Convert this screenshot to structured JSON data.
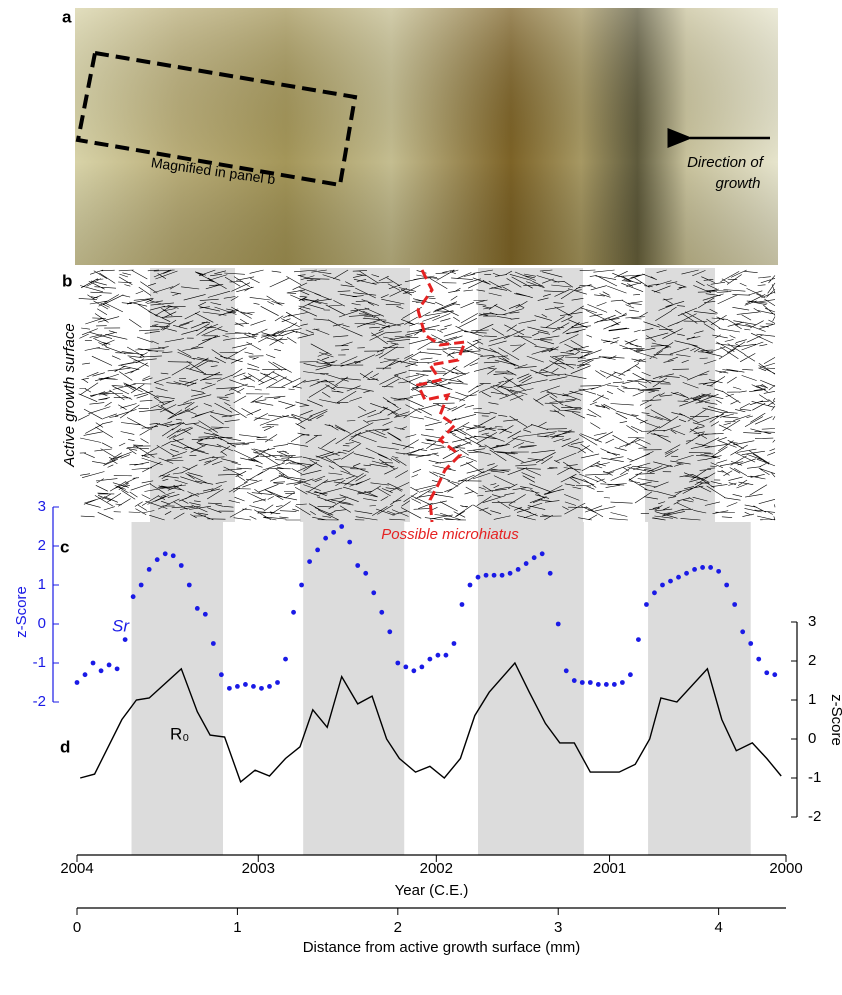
{
  "panels": {
    "a": {
      "label": "a",
      "box_label": "Magnified in panel b",
      "arrow_label": [
        "Direction of",
        "growth"
      ]
    },
    "b": {
      "label": "b",
      "side_label": "Active growth surface",
      "microhiatus_label": "Possible microhiatus"
    },
    "c_label": "c",
    "d_label": "d"
  },
  "chart_data": {
    "type": "line",
    "x_label": "Distance from active growth surface (mm)",
    "xlim": [
      0,
      4.42
    ],
    "xticks": [
      0,
      1,
      2,
      3,
      4
    ],
    "year_label": "Year (C.E.)",
    "year_ticks": [
      {
        "value": 0,
        "label": "2004"
      },
      {
        "value": 1.13,
        "label": "2003"
      },
      {
        "value": 2.24,
        "label": "2002"
      },
      {
        "value": 3.32,
        "label": "2001"
      },
      {
        "value": 4.42,
        "label": "2000"
      }
    ],
    "y_label": "z-Score",
    "ylim": [
      -2,
      3
    ],
    "yticks": [
      -2,
      -1,
      0,
      1,
      2,
      3
    ],
    "y2_label": "z-Score",
    "y2lim": [
      -2,
      3
    ],
    "y2ticks": [
      -2,
      -1,
      0,
      1,
      2,
      3
    ],
    "shaded_bands": [
      [
        0.34,
        0.91
      ],
      [
        1.41,
        2.04
      ],
      [
        2.5,
        3.16
      ],
      [
        3.56,
        4.2
      ]
    ],
    "series": [
      {
        "name": "Sr",
        "color": "#1a1ae6",
        "style": "dots",
        "axis": "y",
        "x": [
          0,
          0.05,
          0.1,
          0.15,
          0.2,
          0.25,
          0.3,
          0.35,
          0.4,
          0.45,
          0.5,
          0.55,
          0.6,
          0.65,
          0.7,
          0.75,
          0.8,
          0.85,
          0.9,
          0.95,
          1,
          1.05,
          1.1,
          1.15,
          1.2,
          1.25,
          1.3,
          1.35,
          1.4,
          1.45,
          1.5,
          1.55,
          1.6,
          1.65,
          1.7,
          1.75,
          1.8,
          1.85,
          1.9,
          1.95,
          2,
          2.05,
          2.1,
          2.15,
          2.2,
          2.25,
          2.3,
          2.35,
          2.4,
          2.45,
          2.5,
          2.55,
          2.6,
          2.65,
          2.7,
          2.75,
          2.8,
          2.85,
          2.9,
          2.95,
          3,
          3.05,
          3.1,
          3.15,
          3.2,
          3.25,
          3.3,
          3.35,
          3.4,
          3.45,
          3.5,
          3.55,
          3.6,
          3.65,
          3.7,
          3.75,
          3.8,
          3.85,
          3.9,
          3.95,
          4,
          4.05,
          4.1,
          4.15,
          4.2,
          4.25,
          4.3,
          4.35
        ],
        "values": [
          -1.5,
          -1.3,
          -1.0,
          -1.2,
          -1.05,
          -1.15,
          -0.4,
          0.7,
          1.0,
          1.4,
          1.65,
          1.8,
          1.75,
          1.5,
          1.0,
          0.4,
          0.25,
          -0.5,
          -1.3,
          -1.65,
          -1.6,
          -1.55,
          -1.6,
          -1.65,
          -1.6,
          -1.5,
          -0.9,
          0.3,
          1.0,
          1.6,
          1.9,
          2.2,
          2.35,
          2.5,
          2.1,
          1.5,
          1.3,
          0.8,
          0.3,
          -0.2,
          -1.0,
          -1.1,
          -1.2,
          -1.1,
          -0.9,
          -0.8,
          -0.8,
          -0.5,
          0.5,
          1.0,
          1.2,
          1.25,
          1.25,
          1.25,
          1.3,
          1.4,
          1.55,
          1.7,
          1.8,
          1.3,
          0.0,
          -1.2,
          -1.45,
          -1.5,
          -1.5,
          -1.55,
          -1.55,
          -1.55,
          -1.5,
          -1.3,
          -0.4,
          0.5,
          0.8,
          1.0,
          1.1,
          1.2,
          1.3,
          1.4,
          1.45,
          1.45,
          1.35,
          1.0,
          0.5,
          -0.2,
          -0.5,
          -0.9,
          -1.25,
          -1.3
        ]
      },
      {
        "name": "R₀",
        "color": "#000000",
        "style": "line",
        "axis": "y2",
        "x": [
          0.02,
          0.11,
          0.28,
          0.37,
          0.45,
          0.65,
          0.75,
          0.83,
          0.92,
          1.02,
          1.11,
          1.2,
          1.3,
          1.39,
          1.47,
          1.56,
          1.65,
          1.75,
          1.84,
          1.93,
          2.01,
          2.11,
          2.2,
          2.29,
          2.39,
          2.48,
          2.57,
          2.73,
          2.82,
          2.92,
          3.01,
          3.1,
          3.2,
          3.29,
          3.38,
          3.48,
          3.57,
          3.64,
          3.74,
          3.93,
          4.02,
          4.11,
          4.21,
          4.3,
          4.39
        ],
        "values": [
          -1.0,
          -0.9,
          0.5,
          1.0,
          1.05,
          1.8,
          0.7,
          0.1,
          0.05,
          -1.1,
          -0.8,
          -0.95,
          -0.5,
          -0.2,
          0.75,
          0.3,
          1.6,
          0.9,
          1.1,
          0.0,
          -0.5,
          -0.85,
          -0.7,
          -1.0,
          -0.5,
          0.6,
          1.2,
          1.95,
          1.2,
          0.4,
          -0.1,
          -0.1,
          -0.85,
          -0.85,
          -0.85,
          -0.65,
          0.0,
          1.05,
          0.95,
          1.8,
          0.5,
          -0.3,
          -0.1,
          -0.5,
          -0.95
        ]
      }
    ]
  }
}
